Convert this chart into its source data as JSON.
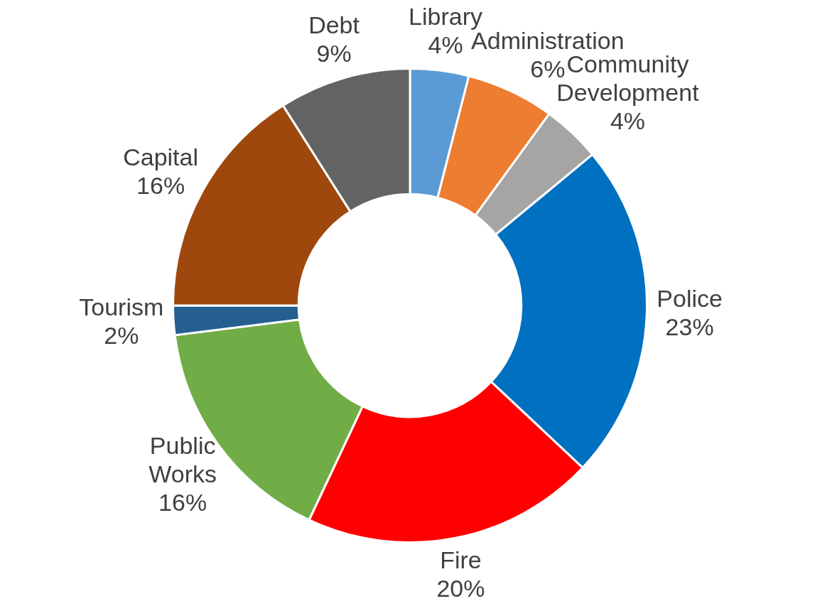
{
  "chart_data": {
    "type": "donut",
    "categories": [
      "Library",
      "Administration",
      "Community Development",
      "Police",
      "Fire",
      "Public Works",
      "Tourism",
      "Capital",
      "Debt"
    ],
    "values": [
      4,
      6,
      4,
      23,
      20,
      16,
      2,
      16,
      9
    ],
    "value_labels": [
      "4%",
      "6%",
      "4%",
      "23%",
      "20%",
      "16%",
      "2%",
      "16%",
      "9%"
    ],
    "colors": [
      "#5b9bd5",
      "#ed7d31",
      "#a5a5a5",
      "#0070c0",
      "#ff0000",
      "#70ad47",
      "#255e91",
      "#9e480e",
      "#636363"
    ],
    "legend": false
  }
}
